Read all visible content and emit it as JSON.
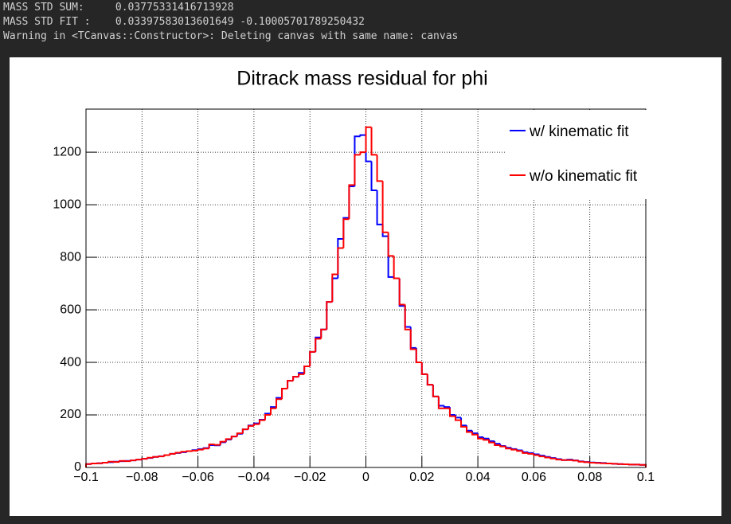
{
  "console": {
    "lines": [
      "MASS STD SUM:     0.03775331416713928",
      "MASS STD FIT :    0.03397583013601649 -0.10005701789250432",
      "Warning in <TCanvas::Constructor>: Deleting canvas with same name: canvas"
    ]
  },
  "chart_data": {
    "type": "histogram",
    "title": "Ditrack mass residual for phi",
    "bins": [
      -0.1,
      -0.098,
      -0.096,
      -0.094,
      -0.092,
      -0.09,
      -0.088,
      -0.086,
      -0.084,
      -0.082,
      -0.08,
      -0.078,
      -0.076,
      -0.074,
      -0.072,
      -0.07,
      -0.068,
      -0.066,
      -0.064,
      -0.062,
      -0.06,
      -0.058,
      -0.056,
      -0.054,
      -0.052,
      -0.05,
      -0.048,
      -0.046,
      -0.044,
      -0.042,
      -0.04,
      -0.038,
      -0.036,
      -0.034,
      -0.032,
      -0.03,
      -0.028,
      -0.026,
      -0.024,
      -0.022,
      -0.02,
      -0.018,
      -0.016,
      -0.014,
      -0.012,
      -0.01,
      -0.008,
      -0.006,
      -0.004,
      -0.002,
      0,
      0.002,
      0.004,
      0.006,
      0.008,
      0.01,
      0.012,
      0.014,
      0.016,
      0.018,
      0.02,
      0.022,
      0.024,
      0.026,
      0.028,
      0.03,
      0.032,
      0.034,
      0.036,
      0.038,
      0.04,
      0.042,
      0.044,
      0.046,
      0.048,
      0.05,
      0.052,
      0.054,
      0.056,
      0.058,
      0.06,
      0.062,
      0.064,
      0.066,
      0.068,
      0.07,
      0.072,
      0.074,
      0.076,
      0.078,
      0.08,
      0.082,
      0.084,
      0.086,
      0.088,
      0.09,
      0.092,
      0.094,
      0.096,
      0.098,
      0.1
    ],
    "series": [
      {
        "name": "w/ kinematic fit",
        "color": "#0000ff",
        "values": [
          13,
          15,
          16,
          18,
          20,
          22,
          24,
          25,
          27,
          30,
          33,
          36,
          40,
          43,
          47,
          52,
          55,
          58,
          62,
          66,
          70,
          74,
          85,
          84,
          96,
          106,
          118,
          128,
          145,
          160,
          168,
          182,
          205,
          230,
          265,
          300,
          330,
          345,
          360,
          385,
          440,
          495,
          525,
          630,
          720,
          870,
          950,
          1070,
          1260,
          1265,
          1165,
          1055,
          925,
          880,
          725,
          720,
          615,
          535,
          455,
          400,
          355,
          315,
          270,
          235,
          230,
          200,
          190,
          160,
          140,
          130,
          115,
          110,
          100,
          90,
          82,
          75,
          70,
          65,
          58,
          55,
          50,
          45,
          40,
          36,
          32,
          28,
          30,
          27,
          23,
          21,
          19,
          18,
          17,
          15,
          14,
          13,
          12,
          11,
          11,
          10
        ]
      },
      {
        "name": "w/o kinematic fit",
        "color": "#ff0000",
        "values": [
          13,
          15,
          16,
          18,
          22,
          21,
          25,
          24,
          27,
          30,
          33,
          37,
          40,
          42,
          47,
          52,
          56,
          60,
          62,
          64,
          68,
          72,
          88,
          86,
          98,
          108,
          118,
          130,
          145,
          158,
          165,
          180,
          200,
          225,
          260,
          300,
          330,
          345,
          355,
          385,
          440,
          490,
          525,
          630,
          735,
          835,
          945,
          1075,
          1190,
          1200,
          1295,
          1190,
          1090,
          895,
          805,
          720,
          620,
          525,
          450,
          400,
          355,
          315,
          270,
          225,
          225,
          195,
          180,
          155,
          135,
          125,
          110,
          105,
          95,
          85,
          80,
          72,
          68,
          63,
          55,
          52,
          47,
          42,
          38,
          34,
          30,
          28,
          28,
          26,
          22,
          20,
          18,
          17,
          16,
          15,
          14,
          13,
          12,
          11,
          11,
          10
        ]
      }
    ],
    "xlim": [
      -0.1,
      0.1
    ],
    "xticks": [
      {
        "value": -0.1,
        "label": "−0.1"
      },
      {
        "value": -0.08,
        "label": "−0.08"
      },
      {
        "value": -0.06,
        "label": "−0.06"
      },
      {
        "value": -0.04,
        "label": "−0.04"
      },
      {
        "value": -0.02,
        "label": "−0.02"
      },
      0,
      0.02,
      0.04,
      0.06,
      0.08,
      0.1
    ],
    "ylim": [
      0,
      1364
    ],
    "yticks": [
      0,
      200,
      400,
      600,
      800,
      1000,
      1200
    ],
    "grid": true,
    "legend": "top-right"
  }
}
